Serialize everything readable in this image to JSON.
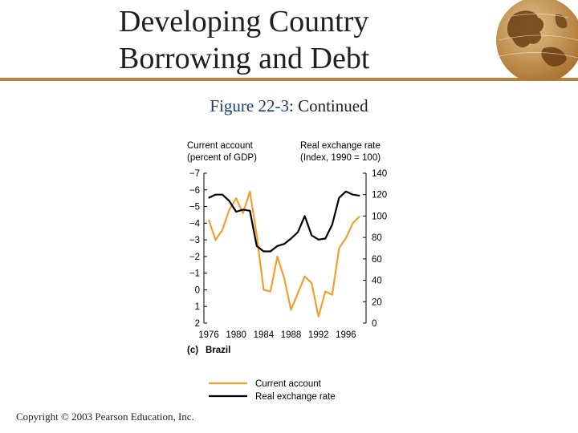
{
  "header": {
    "title_line1": "Developing Country",
    "title_line2": "Borrowing and Debt"
  },
  "figure": {
    "label": "Figure 22-3",
    "suffix": ": Continued",
    "panel_letter": "(c)",
    "panel_name": "Brazil"
  },
  "footer": {
    "copyright": "Copyright © 2003 Pearson Education, Inc."
  },
  "colors": {
    "current_account": "#f0a030",
    "real_exchange_rate": "#000000",
    "accent": "#b8823a"
  },
  "chart_data": {
    "type": "line",
    "x": [
      1976,
      1977,
      1978,
      1979,
      1980,
      1981,
      1982,
      1983,
      1984,
      1985,
      1986,
      1987,
      1988,
      1989,
      1990,
      1991,
      1992,
      1993,
      1994,
      1995,
      1996,
      1997,
      1998
    ],
    "left_axis": {
      "label_line1": "Current account",
      "label_line2": "(percent of GDP)",
      "ticks": [
        "−7",
        "−6",
        "−5",
        "−4",
        "−3",
        "−2",
        "−1",
        "0",
        "1",
        "2"
      ],
      "range": [
        -7,
        2
      ],
      "inverted": true
    },
    "right_axis": {
      "label_line1": "Real exchange rate",
      "label_line2": "(Index, 1990 = 100)",
      "ticks": [
        "140",
        "120",
        "100",
        "80",
        "60",
        "40",
        "20",
        "0"
      ],
      "range": [
        0,
        140
      ]
    },
    "x_ticks": [
      "1976",
      "1980",
      "1984",
      "1988",
      "1992",
      "1996"
    ],
    "series": [
      {
        "name": "Current account",
        "axis": "left",
        "values": [
          -4.2,
          -3.0,
          -3.6,
          -4.8,
          -5.5,
          -4.6,
          -5.9,
          -3.3,
          0.0,
          0.1,
          -2.0,
          -0.7,
          1.2,
          0.2,
          -0.8,
          -0.4,
          1.6,
          0.1,
          0.3,
          -2.5,
          -3.1,
          -4.0,
          -4.4
        ]
      },
      {
        "name": "Real exchange rate",
        "axis": "right",
        "values": [
          117,
          120,
          120,
          114,
          104,
          106,
          105,
          72,
          67,
          67,
          72,
          74,
          79,
          85,
          100,
          82,
          78,
          79,
          92,
          117,
          123,
          120,
          119
        ]
      }
    ]
  }
}
